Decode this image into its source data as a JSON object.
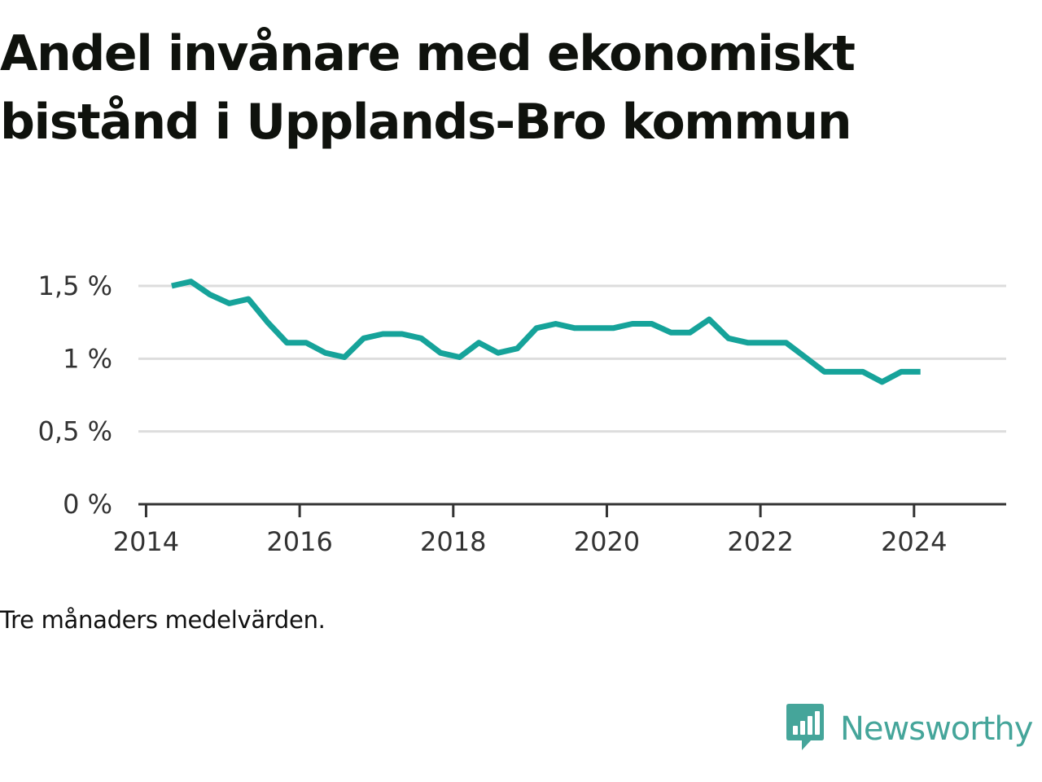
{
  "title": "Andel invånare med ekonomiskt bistånd i Upplands-Bro kommun",
  "note": "Tre månaders medelvärden.",
  "brand": {
    "name": "Newsworthy",
    "icon": "newsworthy-logo-icon",
    "color": "#45a59a"
  },
  "colors": {
    "line": "#16a39a",
    "grid": "#dddddd",
    "axis": "#333333"
  },
  "chart_data": {
    "type": "line",
    "title": "Andel invånare med ekonomiskt bistånd i Upplands-Bro kommun",
    "xlabel": "",
    "ylabel": "",
    "xlim": [
      2013.9,
      2025.2
    ],
    "ylim": [
      0,
      1.5
    ],
    "grid": true,
    "x_ticks": [
      2014,
      2016,
      2018,
      2020,
      2022,
      2024
    ],
    "y_ticks": [
      {
        "value": 0,
        "label": "0 %"
      },
      {
        "value": 0.5,
        "label": "0,5 %"
      },
      {
        "value": 1,
        "label": "1 %"
      },
      {
        "value": 1.5,
        "label": "1,5 %"
      }
    ],
    "series": [
      {
        "x": [
          "2014-05",
          "2014-08",
          "2014-11",
          "2015-02",
          "2015-05",
          "2015-08",
          "2015-11",
          "2016-02",
          "2016-05",
          "2016-08",
          "2016-11",
          "2017-02",
          "2017-05",
          "2017-08",
          "2017-11",
          "2018-02",
          "2018-05",
          "2018-08",
          "2018-11",
          "2019-02",
          "2019-05",
          "2019-08",
          "2019-11",
          "2020-02",
          "2020-05",
          "2020-08",
          "2020-11",
          "2021-02",
          "2021-05",
          "2021-08",
          "2021-11",
          "2022-02",
          "2022-05",
          "2022-08",
          "2022-11",
          "2023-02",
          "2023-05",
          "2023-08",
          "2023-11",
          "2024-02"
        ],
        "values": [
          1.5,
          1.53,
          1.44,
          1.38,
          1.41,
          1.25,
          1.11,
          1.11,
          1.04,
          1.01,
          1.14,
          1.17,
          1.17,
          1.14,
          1.04,
          1.01,
          1.11,
          1.04,
          1.07,
          1.21,
          1.24,
          1.21,
          1.21,
          1.21,
          1.24,
          1.24,
          1.18,
          1.18,
          1.27,
          1.14,
          1.11,
          1.11,
          1.11,
          1.01,
          0.91,
          0.91,
          0.91,
          0.84,
          0.91,
          0.91
        ]
      }
    ]
  }
}
